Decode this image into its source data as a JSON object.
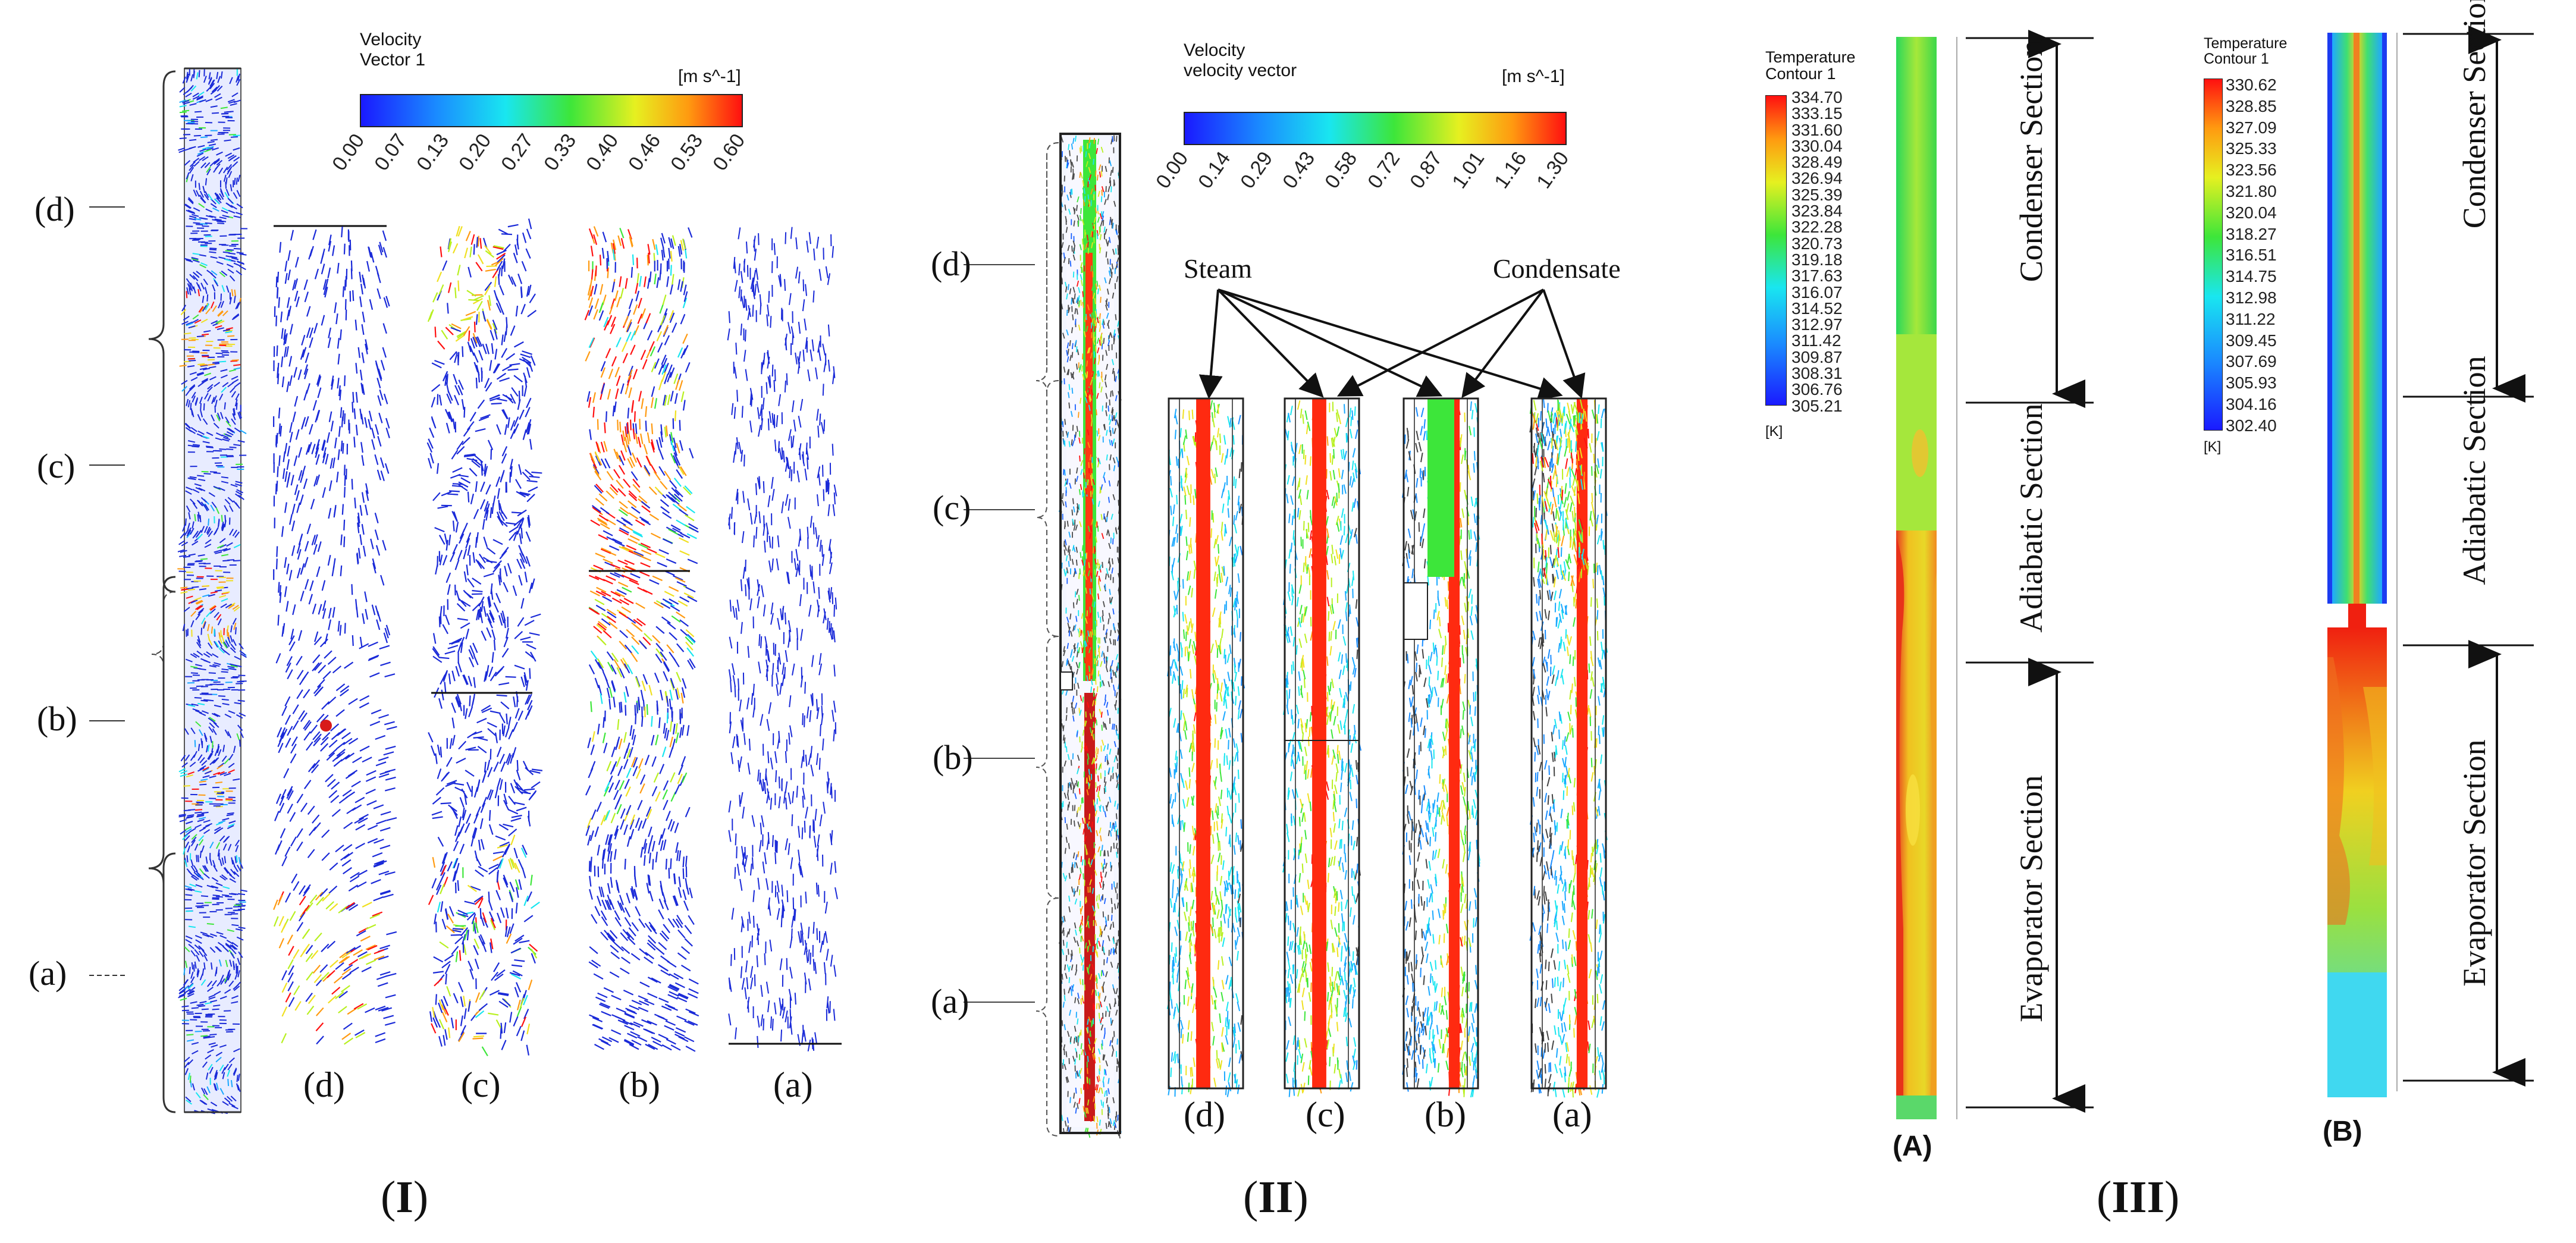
{
  "panel_I": {
    "legend_title_line1": "Velocity",
    "legend_title_line2": "Vector 1",
    "legend_unit": "[m s^-1]",
    "legend_ticks": [
      "0.00",
      "0.07",
      "0.13",
      "0.20",
      "0.27",
      "0.33",
      "0.40",
      "0.46",
      "0.53",
      "0.60"
    ],
    "bracket_labels": [
      "(d)",
      "(c)",
      "(b)",
      "(a)"
    ],
    "subplot_labels": [
      "(d)",
      "(c)",
      "(b)",
      "(a)"
    ],
    "panel_label": "I"
  },
  "panel_II": {
    "legend_title_line1": "Velocity",
    "legend_title_line2": "velocity vector",
    "legend_unit": "[m s^-1]",
    "legend_ticks": [
      "0.00",
      "0.14",
      "0.29",
      "0.43",
      "0.58",
      "0.72",
      "0.87",
      "1.01",
      "1.16",
      "1.30"
    ],
    "bracket_labels": [
      "(d)",
      "(c)",
      "(b)",
      "(a)"
    ],
    "subplot_labels": [
      "(d)",
      "(c)",
      "(b)",
      "(a)"
    ],
    "annotation_steam": "Steam",
    "annotation_condensate": "Condensate",
    "panel_label": "II"
  },
  "panel_III": {
    "legend_A_title_line1": "Temperature",
    "legend_A_title_line2": "Contour 1",
    "legend_A_values": [
      "334.70",
      "333.15",
      "331.60",
      "330.04",
      "328.49",
      "326.94",
      "325.39",
      "323.84",
      "322.28",
      "320.73",
      "319.18",
      "317.63",
      "316.07",
      "314.52",
      "312.97",
      "311.42",
      "309.87",
      "308.31",
      "306.76",
      "305.21"
    ],
    "legend_A_unit": "[K]",
    "legend_B_title_line1": "Temperature",
    "legend_B_title_line2": "Contour 1",
    "legend_B_values": [
      "330.62",
      "328.85",
      "327.09",
      "325.33",
      "323.56",
      "321.80",
      "320.04",
      "318.27",
      "316.51",
      "314.75",
      "312.98",
      "311.22",
      "309.45",
      "307.69",
      "305.93",
      "304.16",
      "302.40"
    ],
    "legend_B_unit": "[K]",
    "section_condenser": "Condenser Section",
    "section_adiabatic": "Adiabatic Section",
    "section_evaporator": "Evaporator Section",
    "label_A": "(A)",
    "label_B": "(B)",
    "panel_label": "III"
  },
  "colors": {
    "jet_blue": "#1f3bff",
    "jet_cyan": "#19e0ff",
    "jet_green": "#35e03a",
    "jet_yellow": "#f0f020",
    "jet_red": "#ff1a10"
  }
}
